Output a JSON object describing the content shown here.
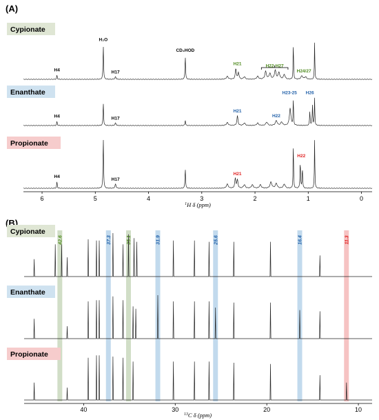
{
  "colors": {
    "green": "#4e8a1e",
    "blue": "#1f5fa8",
    "red": "#e02020",
    "green_band": "#c9d8bd",
    "blue_band": "#b7d3ea",
    "red_band": "#f4b8b8",
    "label_green_bg": "#dfe6d4",
    "label_blue_bg": "#cfe2f0",
    "label_red_bg": "#f6cccc",
    "line": "#222222"
  },
  "panel_a": {
    "label": "(A)"
  },
  "panel_b": {
    "label": "(B)"
  },
  "chart_data": [
    {
      "type": "line",
      "panel": "(A)",
      "xlabel": "1H δ(ppm)",
      "xlabel_parts": {
        "sup": "1",
        "rest": "H δ (ppm)"
      },
      "xlim": [
        6.35,
        -0.2
      ],
      "ticks": [
        "6",
        "5",
        "4",
        "3",
        "2",
        "1",
        "0"
      ],
      "tick_values": [
        6,
        5,
        4,
        3,
        2,
        1,
        0
      ],
      "series": [
        {
          "name": "Cypionate",
          "label_color": "label_green_bg",
          "peaks": [
            {
              "x": 5.72,
              "h": 0.09,
              "w": 0.006
            },
            {
              "x": 4.85,
              "h": 0.72,
              "w": 0.006
            },
            {
              "x": 4.62,
              "h": 0.05,
              "w": 0.012
            },
            {
              "x": 3.31,
              "h": 0.5,
              "w": 0.006
            },
            {
              "x": 2.52,
              "h": 0.06,
              "w": 0.02
            },
            {
              "x": 2.36,
              "h": 0.22,
              "w": 0.012
            },
            {
              "x": 2.31,
              "h": 0.14,
              "w": 0.012
            },
            {
              "x": 2.2,
              "h": 0.05,
              "w": 0.02
            },
            {
              "x": 1.95,
              "h": 0.06,
              "w": 0.02
            },
            {
              "x": 1.8,
              "h": 0.16,
              "w": 0.018
            },
            {
              "x": 1.72,
              "h": 0.12,
              "w": 0.018
            },
            {
              "x": 1.62,
              "h": 0.18,
              "w": 0.018
            },
            {
              "x": 1.55,
              "h": 0.14,
              "w": 0.018
            },
            {
              "x": 1.45,
              "h": 0.1,
              "w": 0.018
            },
            {
              "x": 1.28,
              "h": 0.78,
              "w": 0.005
            },
            {
              "x": 1.12,
              "h": 0.07,
              "w": 0.02
            },
            {
              "x": 1.05,
              "h": 0.05,
              "w": 0.02
            },
            {
              "x": 0.88,
              "h": 0.78,
              "w": 0.005
            }
          ],
          "annotations": [
            {
              "text": "H4",
              "x": 5.72,
              "color": "black"
            },
            {
              "text": "H₂O",
              "x": 4.85,
              "color": "black"
            },
            {
              "text": "H17",
              "x": 4.62,
              "color": "black"
            },
            {
              "text": "CD₂HOD",
              "x": 3.31,
              "color": "black"
            },
            {
              "text": "H21",
              "x": 2.33,
              "color": "green"
            },
            {
              "text": "H22-H27",
              "x": 1.63,
              "color": "green"
            },
            {
              "text": "H24/27",
              "x": 1.08,
              "color": "green"
            }
          ]
        },
        {
          "name": "Enanthate",
          "label_color": "label_blue_bg",
          "peaks": [
            {
              "x": 5.72,
              "h": 0.09,
              "w": 0.006
            },
            {
              "x": 4.85,
              "h": 0.48,
              "w": 0.006
            },
            {
              "x": 4.62,
              "h": 0.05,
              "w": 0.012
            },
            {
              "x": 3.31,
              "h": 0.12,
              "w": 0.006
            },
            {
              "x": 2.52,
              "h": 0.06,
              "w": 0.02
            },
            {
              "x": 2.33,
              "h": 0.2,
              "w": 0.012
            },
            {
              "x": 2.2,
              "h": 0.05,
              "w": 0.02
            },
            {
              "x": 1.95,
              "h": 0.05,
              "w": 0.02
            },
            {
              "x": 1.78,
              "h": 0.07,
              "w": 0.02
            },
            {
              "x": 1.6,
              "h": 0.1,
              "w": 0.02
            },
            {
              "x": 1.5,
              "h": 0.07,
              "w": 0.02
            },
            {
              "x": 1.34,
              "h": 0.36,
              "w": 0.016
            },
            {
              "x": 1.28,
              "h": 0.58,
              "w": 0.005
            },
            {
              "x": 0.97,
              "h": 0.3,
              "w": 0.006
            },
            {
              "x": 0.92,
              "h": 0.42,
              "w": 0.006
            },
            {
              "x": 0.88,
              "h": 0.58,
              "w": 0.005
            }
          ],
          "annotations": [
            {
              "text": "H4",
              "x": 5.72,
              "color": "black"
            },
            {
              "text": "H17",
              "x": 4.62,
              "color": "black"
            },
            {
              "text": "H21",
              "x": 2.33,
              "color": "blue"
            },
            {
              "text": "H22",
              "x": 1.6,
              "color": "blue"
            },
            {
              "text": "H23-25",
              "x": 1.35,
              "color": "blue"
            },
            {
              "text": "H26",
              "x": 0.97,
              "color": "blue"
            }
          ]
        },
        {
          "name": "Propionate",
          "label_color": "label_red_bg",
          "peaks": [
            {
              "x": 5.72,
              "h": 0.1,
              "w": 0.006
            },
            {
              "x": 4.85,
              "h": 0.75,
              "w": 0.006
            },
            {
              "x": 4.62,
              "h": 0.06,
              "w": 0.012
            },
            {
              "x": 3.31,
              "h": 0.3,
              "w": 0.006
            },
            {
              "x": 2.52,
              "h": 0.06,
              "w": 0.02
            },
            {
              "x": 2.37,
              "h": 0.14,
              "w": 0.012
            },
            {
              "x": 2.33,
              "h": 0.12,
              "w": 0.012
            },
            {
              "x": 2.2,
              "h": 0.05,
              "w": 0.02
            },
            {
              "x": 2.05,
              "h": 0.05,
              "w": 0.02
            },
            {
              "x": 1.9,
              "h": 0.05,
              "w": 0.02
            },
            {
              "x": 1.7,
              "h": 0.09,
              "w": 0.02
            },
            {
              "x": 1.6,
              "h": 0.07,
              "w": 0.02
            },
            {
              "x": 1.45,
              "h": 0.06,
              "w": 0.02
            },
            {
              "x": 1.28,
              "h": 0.68,
              "w": 0.005
            },
            {
              "x": 1.15,
              "h": 0.4,
              "w": 0.006
            },
            {
              "x": 1.11,
              "h": 0.3,
              "w": 0.006
            },
            {
              "x": 0.88,
              "h": 0.72,
              "w": 0.005
            }
          ],
          "annotations": [
            {
              "text": "H4",
              "x": 5.72,
              "color": "black"
            },
            {
              "text": "H17",
              "x": 4.62,
              "color": "black"
            },
            {
              "text": "H21",
              "x": 2.33,
              "color": "red"
            },
            {
              "text": "H22",
              "x": 1.13,
              "color": "red"
            }
          ]
        }
      ]
    },
    {
      "type": "line",
      "panel": "(B)",
      "xlabel": "13C δ(ppm)",
      "xlabel_parts": {
        "sup": "13",
        "rest": "C δ (ppm)"
      },
      "xlim": [
        46.5,
        8.5
      ],
      "ticks": [
        "40",
        "30",
        "20",
        "10"
      ],
      "tick_values": [
        40,
        30,
        20,
        10
      ],
      "highlight_bands": [
        {
          "x": 42.6,
          "label": "42.6",
          "color": "green"
        },
        {
          "x": 37.3,
          "label": "37.3",
          "color": "blue"
        },
        {
          "x": 35.1,
          "label": "35.1",
          "color": "green"
        },
        {
          "x": 31.9,
          "label": "31.9",
          "color": "blue"
        },
        {
          "x": 25.6,
          "label": "25.6",
          "color": "blue"
        },
        {
          "x": 16.4,
          "label": "16.4",
          "color": "blue"
        },
        {
          "x": 11.3,
          "label": "11.3",
          "color": "red"
        }
      ],
      "series": [
        {
          "name": "Cypionate",
          "label_color": "label_green_bg",
          "peaks": [
            45.4,
            43.1,
            42.4,
            41.8,
            39.5,
            38.6,
            38.3,
            36.8,
            35.7,
            35.1,
            34.5,
            34.2,
            30.2,
            27.9,
            26.3,
            23.6,
            19.6,
            14.2
          ],
          "heights": [
            0.28,
            0.52,
            0.52,
            0.31,
            0.6,
            0.58,
            0.58,
            0.7,
            0.52,
            0.68,
            0.62,
            0.56,
            0.58,
            0.58,
            0.56,
            0.56,
            0.56,
            0.34
          ]
        },
        {
          "name": "Enanthate",
          "label_color": "label_blue_bg",
          "peaks": [
            45.4,
            41.8,
            39.5,
            38.6,
            38.3,
            36.8,
            35.7,
            34.6,
            34.3,
            31.9,
            30.2,
            27.9,
            26.3,
            25.6,
            23.6,
            19.6,
            16.4,
            14.2
          ],
          "heights": [
            0.32,
            0.2,
            0.6,
            0.62,
            0.62,
            0.68,
            0.62,
            0.52,
            0.48,
            0.7,
            0.6,
            0.6,
            0.6,
            0.5,
            0.58,
            0.58,
            0.46,
            0.44
          ]
        },
        {
          "name": "Propionate",
          "label_color": "label_red_bg",
          "peaks": [
            45.4,
            41.8,
            39.5,
            38.6,
            38.3,
            36.8,
            35.7,
            34.6,
            30.2,
            27.9,
            26.3,
            23.6,
            19.6,
            14.2,
            11.3
          ],
          "heights": [
            0.28,
            0.2,
            0.68,
            0.72,
            0.72,
            0.7,
            0.68,
            0.62,
            0.62,
            0.62,
            0.62,
            0.6,
            0.58,
            0.4,
            0.28
          ]
        }
      ]
    }
  ]
}
